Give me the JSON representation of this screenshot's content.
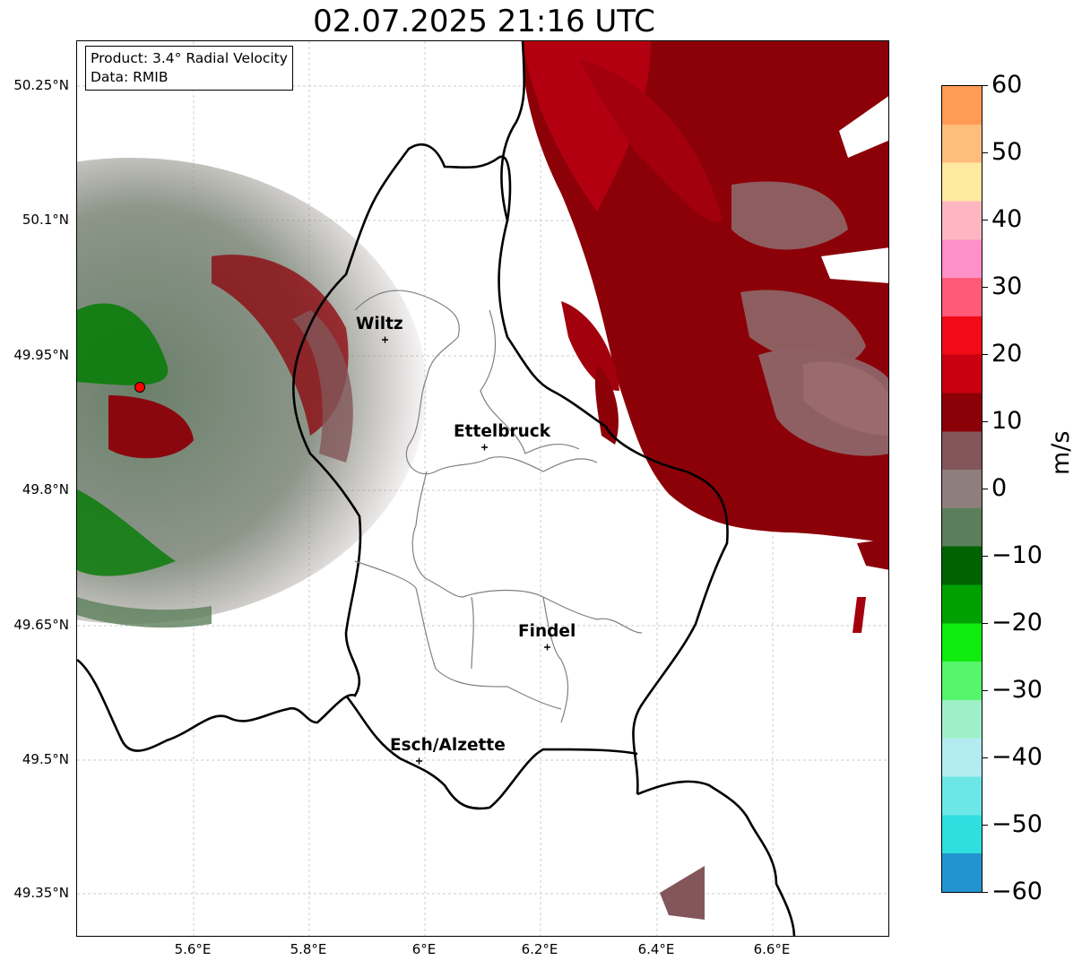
{
  "title": "02.07.2025 21:16 UTC",
  "info": {
    "product": "Product: 3.4° Radial Velocity",
    "data": "Data: RMIB"
  },
  "axes": {
    "lat_ticks": [
      "50.25°N",
      "50.1°N",
      "49.95°N",
      "49.8°N",
      "49.65°N",
      "49.5°N",
      "49.35°N"
    ],
    "lon_ticks": [
      "5.6°E",
      "5.8°E",
      "6°E",
      "6.2°E",
      "6.4°E",
      "6.6°E"
    ]
  },
  "colorbar": {
    "unit": "m/s",
    "ticks": [
      "60",
      "50",
      "40",
      "30",
      "20",
      "10",
      "0",
      "−10",
      "−20",
      "−30",
      "−40",
      "−50",
      "−60"
    ],
    "range": [
      -60,
      60
    ],
    "colors": [
      "#ff9b54",
      "#ffbd7c",
      "#ffe8a0",
      "#ffb6c1",
      "#ff8fc8",
      "#ff5a78",
      "#f20a16",
      "#c80010",
      "#8c0008",
      "#835659",
      "#8e7e7c",
      "#5b7f5b",
      "#006300",
      "#00a000",
      "#10ec10",
      "#55f56c",
      "#9ff0c8",
      "#b2ecf0",
      "#6ce6e6",
      "#2fdfe0",
      "#2494d0"
    ]
  },
  "cities": [
    {
      "name": "Wiltz"
    },
    {
      "name": "Ettelbruck"
    },
    {
      "name": "Findel"
    },
    {
      "name": "Esch/Alzette"
    }
  ],
  "radar_site": {
    "color": "#ff0000"
  }
}
